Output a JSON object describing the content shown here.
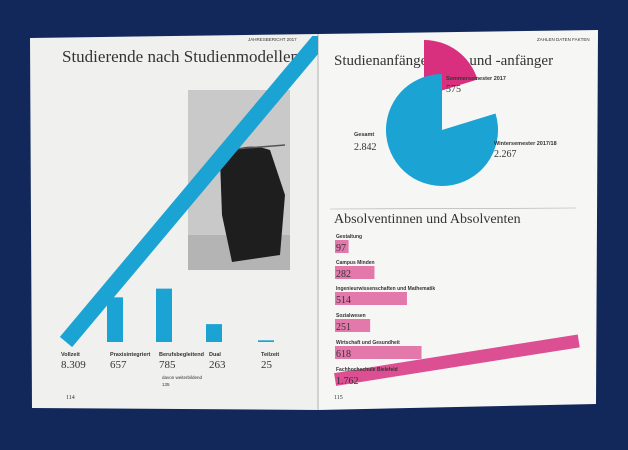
{
  "pages": [
    {
      "header": "JAHRESBERICHT 2017",
      "page_number": "114"
    },
    {
      "header": "ZAHLEN DATEN FAKTEN",
      "page_number": "115"
    }
  ],
  "chart_data": [
    {
      "type": "bar",
      "title": "Studierende nach Studienmodellen",
      "categories": [
        "Vollzeit",
        "Praxisintegriert",
        "Berufsbegleitend",
        "Dual",
        "Teilzeit"
      ],
      "values": [
        8309,
        657,
        785,
        263,
        25
      ],
      "value_labels": [
        "8.309",
        "657",
        "785",
        "263",
        "25"
      ],
      "annotations": [
        "davon weiterbildend",
        "135"
      ],
      "color": "#1aa3d3"
    },
    {
      "type": "pie",
      "title": "Studienanfängerinnen und -anfänger",
      "categories": [
        "Sommersemester 2017",
        "Wintersemester 2017/18"
      ],
      "values": [
        575,
        2267
      ],
      "value_labels": [
        "575",
        "2.267"
      ],
      "colors": [
        "#d8307e",
        "#1aa3d3"
      ],
      "total_label": "Gesamt",
      "total": 2842,
      "total_value_label": "2.842"
    },
    {
      "type": "hbar",
      "title": "Absolventinnen und Absolventen",
      "categories": [
        "Gestaltung",
        "Campus Minden",
        "Ingenieurwissenschaften und Mathematik",
        "Sozialwesen",
        "Wirtschaft und Gesundheit",
        "Fachhochschule Bielefeld"
      ],
      "values": [
        97,
        282,
        514,
        251,
        618,
        1762
      ],
      "value_labels": [
        "97",
        "282",
        "514",
        "251",
        "618",
        "1.762"
      ],
      "color": "#dc4f92"
    }
  ]
}
